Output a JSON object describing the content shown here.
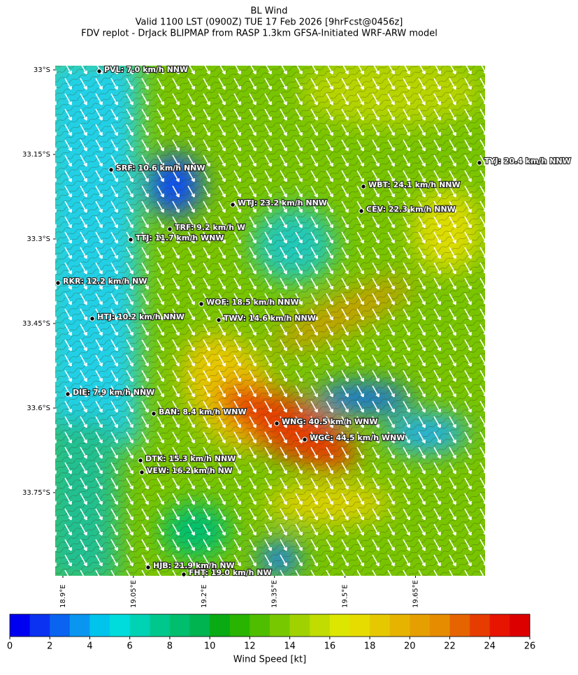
{
  "header": {
    "title": "BL Wind",
    "subtitle": "Valid 1100 LST (0900Z) TUE 17 Feb 2026 [9hrFcst@0456z]",
    "source": "FDV replot - DrJack BLIPMAP from RASP 1.3km GFSA-Initiated WRF-ARW model"
  },
  "map": {
    "xlim": [
      18.8837,
      19.798
    ],
    "ylim": [
      -33.8975,
      -32.9926
    ],
    "yticks": [
      {
        "value": -33.0,
        "label": "33°S"
      },
      {
        "value": -33.15,
        "label": "33.15°S"
      },
      {
        "value": -33.3,
        "label": "33.3°S"
      },
      {
        "value": -33.45,
        "label": "33.45°S"
      },
      {
        "value": -33.6,
        "label": "33.6°S"
      },
      {
        "value": -33.75,
        "label": "33.75°S"
      }
    ],
    "xticks": [
      {
        "value": 18.9,
        "label": "18.9°E"
      },
      {
        "value": 19.05,
        "label": "19.05°E"
      },
      {
        "value": 19.2,
        "label": "19.2°E"
      },
      {
        "value": 19.35,
        "label": "19.35°E"
      },
      {
        "value": 19.5,
        "label": "19.5°E"
      },
      {
        "value": 19.65,
        "label": "19.65°E"
      }
    ],
    "stations": [
      "PVL: 7.0 km/h NNW",
      "SRF: 10.6 km/h NNW",
      "WTJ: 23.2 km/h NNW",
      "TRF: 9.2 km/h W",
      "TTJ: 11.7 km/h WNW",
      "WBT: 24.1 km/h NNW",
      "CEV: 22.3 km/h NNW",
      "TYJ: 20.4 km/h NNW",
      "RKR: 12.2 km/h NW",
      "WOF: 18.5 km/h NNW",
      "HTJ: 10.2 km/h NNW",
      "TWV: 14.6 km/h NNW",
      "DIE: 7.9 km/h NNW",
      "BAN: 8.4 km/h WNW",
      "WNG: 40.5 km/h WNW",
      "WGC: 44.5 km/h WNW",
      "DTK: 15.3 km/h NNW",
      "VEW: 16.2 km/h NW",
      "HJB: 21.9 km/h NW",
      "FHT: 19.0 km/h NW"
    ]
  },
  "colorbar": {
    "label": "Wind Speed [kt]",
    "clim": [
      0,
      26
    ],
    "ticks": [
      0,
      2,
      4,
      6,
      8,
      10,
      12,
      14,
      16,
      18,
      20,
      22,
      24,
      26
    ],
    "colors": [
      "#0000f0",
      "#0a32f0",
      "#0a64f0",
      "#0a96f0",
      "#00c4ec",
      "#00dcdc",
      "#00d2b4",
      "#00c88c",
      "#00be6e",
      "#00b450",
      "#0aaa14",
      "#28b400",
      "#50be00",
      "#78c800",
      "#a0d200",
      "#c0dc00",
      "#dce600",
      "#e6dc00",
      "#e6c800",
      "#e6b400",
      "#e69f00",
      "#e68c00",
      "#e66400",
      "#e63c00",
      "#e61400",
      "#dc0000",
      "#be0028"
    ]
  }
}
